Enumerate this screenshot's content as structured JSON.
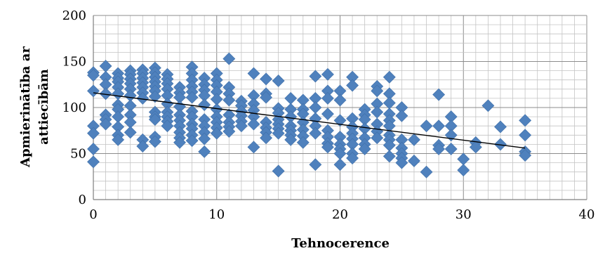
{
  "chart_data": {
    "type": "scatter",
    "xlabel": "Tehnocerence",
    "ylabel": "Apmierinātība ar attiecībām",
    "ylabel_lines": [
      "Apmierinātība ar",
      "attiecībām"
    ],
    "xlim": [
      0,
      40
    ],
    "ylim": [
      0,
      200
    ],
    "x_ticks": [
      "0",
      "10",
      "20",
      "30",
      "40"
    ],
    "y_ticks": [
      "0",
      "50",
      "100",
      "150",
      "200"
    ],
    "grid": true,
    "marker_color": "#4F81BD",
    "trendline": {
      "x": [
        0,
        35
      ],
      "y": [
        116,
        56
      ],
      "color": "#000000"
    },
    "points": [
      [
        0,
        138
      ],
      [
        0,
        135
      ],
      [
        0,
        118
      ],
      [
        0,
        80
      ],
      [
        0,
        72
      ],
      [
        0,
        55
      ],
      [
        0,
        41
      ],
      [
        1,
        145
      ],
      [
        1,
        133
      ],
      [
        1,
        125
      ],
      [
        1,
        115
      ],
      [
        1,
        92
      ],
      [
        1,
        87
      ],
      [
        1,
        82
      ],
      [
        2,
        137
      ],
      [
        2,
        132
      ],
      [
        2,
        128
      ],
      [
        2,
        122
      ],
      [
        2,
        115
      ],
      [
        2,
        103
      ],
      [
        2,
        98
      ],
      [
        2,
        90
      ],
      [
        2,
        79
      ],
      [
        2,
        70
      ],
      [
        2,
        65
      ],
      [
        3,
        140
      ],
      [
        3,
        136
      ],
      [
        3,
        131
      ],
      [
        3,
        126
      ],
      [
        3,
        120
      ],
      [
        3,
        113
      ],
      [
        3,
        102
      ],
      [
        3,
        92
      ],
      [
        3,
        84
      ],
      [
        3,
        73
      ],
      [
        4,
        141
      ],
      [
        4,
        137
      ],
      [
        4,
        132
      ],
      [
        4,
        127
      ],
      [
        4,
        122
      ],
      [
        4,
        116
      ],
      [
        4,
        110
      ],
      [
        4,
        65
      ],
      [
        4,
        58
      ],
      [
        5,
        143
      ],
      [
        5,
        138
      ],
      [
        5,
        133
      ],
      [
        5,
        128
      ],
      [
        5,
        123
      ],
      [
        5,
        118
      ],
      [
        5,
        112
      ],
      [
        5,
        95
      ],
      [
        5,
        90
      ],
      [
        5,
        87
      ],
      [
        5,
        68
      ],
      [
        5,
        63
      ],
      [
        6,
        136
      ],
      [
        6,
        131
      ],
      [
        6,
        126
      ],
      [
        6,
        120
      ],
      [
        6,
        113
      ],
      [
        6,
        104
      ],
      [
        6,
        95
      ],
      [
        6,
        90
      ],
      [
        6,
        85
      ],
      [
        6,
        80
      ],
      [
        7,
        122
      ],
      [
        7,
        116
      ],
      [
        7,
        111
      ],
      [
        7,
        101
      ],
      [
        7,
        92
      ],
      [
        7,
        86
      ],
      [
        7,
        80
      ],
      [
        7,
        73
      ],
      [
        7,
        67
      ],
      [
        7,
        62
      ],
      [
        8,
        144
      ],
      [
        8,
        137
      ],
      [
        8,
        130
      ],
      [
        8,
        123
      ],
      [
        8,
        117
      ],
      [
        8,
        111
      ],
      [
        8,
        96
      ],
      [
        8,
        90
      ],
      [
        8,
        82
      ],
      [
        8,
        77
      ],
      [
        8,
        70
      ],
      [
        8,
        64
      ],
      [
        9,
        132
      ],
      [
        9,
        125
      ],
      [
        9,
        119
      ],
      [
        9,
        113
      ],
      [
        9,
        103
      ],
      [
        9,
        87
      ],
      [
        9,
        80
      ],
      [
        9,
        73
      ],
      [
        9,
        66
      ],
      [
        9,
        52
      ],
      [
        10,
        137
      ],
      [
        10,
        130
      ],
      [
        10,
        124
      ],
      [
        10,
        117
      ],
      [
        10,
        109
      ],
      [
        10,
        98
      ],
      [
        10,
        90
      ],
      [
        10,
        84
      ],
      [
        10,
        78
      ],
      [
        10,
        72
      ],
      [
        11,
        153
      ],
      [
        11,
        122
      ],
      [
        11,
        115
      ],
      [
        11,
        108
      ],
      [
        11,
        92
      ],
      [
        11,
        84
      ],
      [
        11,
        79
      ],
      [
        11,
        74
      ],
      [
        12,
        107
      ],
      [
        12,
        102
      ],
      [
        12,
        96
      ],
      [
        12,
        91
      ],
      [
        12,
        85
      ],
      [
        12,
        80
      ],
      [
        13,
        137
      ],
      [
        13,
        113
      ],
      [
        13,
        104
      ],
      [
        13,
        97
      ],
      [
        13,
        90
      ],
      [
        13,
        82
      ],
      [
        13,
        57
      ],
      [
        14,
        131
      ],
      [
        14,
        115
      ],
      [
        14,
        111
      ],
      [
        14,
        84
      ],
      [
        14,
        78
      ],
      [
        14,
        73
      ],
      [
        14,
        67
      ],
      [
        15,
        129
      ],
      [
        15,
        99
      ],
      [
        15,
        94
      ],
      [
        15,
        87
      ],
      [
        15,
        82
      ],
      [
        15,
        77
      ],
      [
        15,
        72
      ],
      [
        15,
        31
      ],
      [
        16,
        110
      ],
      [
        16,
        98
      ],
      [
        16,
        90
      ],
      [
        16,
        80
      ],
      [
        16,
        75
      ],
      [
        16,
        70
      ],
      [
        16,
        65
      ],
      [
        17,
        108
      ],
      [
        17,
        98
      ],
      [
        17,
        93
      ],
      [
        17,
        84
      ],
      [
        17,
        76
      ],
      [
        17,
        69
      ],
      [
        17,
        62
      ],
      [
        18,
        134
      ],
      [
        18,
        110
      ],
      [
        18,
        100
      ],
      [
        18,
        88
      ],
      [
        18,
        80
      ],
      [
        18,
        72
      ],
      [
        18,
        38
      ],
      [
        19,
        136
      ],
      [
        19,
        118
      ],
      [
        19,
        110
      ],
      [
        19,
        93
      ],
      [
        19,
        75
      ],
      [
        19,
        68
      ],
      [
        19,
        61
      ],
      [
        19,
        57
      ],
      [
        20,
        118
      ],
      [
        20,
        108
      ],
      [
        20,
        86
      ],
      [
        20,
        68
      ],
      [
        20,
        60
      ],
      [
        20,
        55
      ],
      [
        20,
        50
      ],
      [
        20,
        38
      ],
      [
        21,
        133
      ],
      [
        21,
        124
      ],
      [
        21,
        88
      ],
      [
        21,
        79
      ],
      [
        21,
        72
      ],
      [
        21,
        66
      ],
      [
        21,
        60
      ],
      [
        21,
        50
      ],
      [
        21,
        45
      ],
      [
        22,
        98
      ],
      [
        22,
        92
      ],
      [
        22,
        87
      ],
      [
        22,
        77
      ],
      [
        22,
        67
      ],
      [
        22,
        60
      ],
      [
        22,
        55
      ],
      [
        23,
        123
      ],
      [
        23,
        118
      ],
      [
        23,
        104
      ],
      [
        23,
        95
      ],
      [
        23,
        82
      ],
      [
        23,
        74
      ],
      [
        23,
        67
      ],
      [
        24,
        133
      ],
      [
        24,
        115
      ],
      [
        24,
        105
      ],
      [
        24,
        93
      ],
      [
        24,
        86
      ],
      [
        24,
        80
      ],
      [
        24,
        70
      ],
      [
        24,
        65
      ],
      [
        24,
        59
      ],
      [
        24,
        47
      ],
      [
        25,
        100
      ],
      [
        25,
        91
      ],
      [
        25,
        65
      ],
      [
        25,
        56
      ],
      [
        25,
        50
      ],
      [
        25,
        45
      ],
      [
        25,
        40
      ],
      [
        26,
        65
      ],
      [
        26,
        42
      ],
      [
        27,
        80
      ],
      [
        27,
        30
      ],
      [
        28,
        114
      ],
      [
        28,
        80
      ],
      [
        28,
        59
      ],
      [
        28,
        55
      ],
      [
        29,
        90
      ],
      [
        29,
        80
      ],
      [
        29,
        70
      ],
      [
        29,
        55
      ],
      [
        30,
        44
      ],
      [
        30,
        32
      ],
      [
        31,
        62
      ],
      [
        31,
        57
      ],
      [
        32,
        102
      ],
      [
        33,
        79
      ],
      [
        33,
        60
      ],
      [
        35,
        86
      ],
      [
        35,
        70
      ],
      [
        35,
        52
      ],
      [
        35,
        48
      ]
    ]
  }
}
